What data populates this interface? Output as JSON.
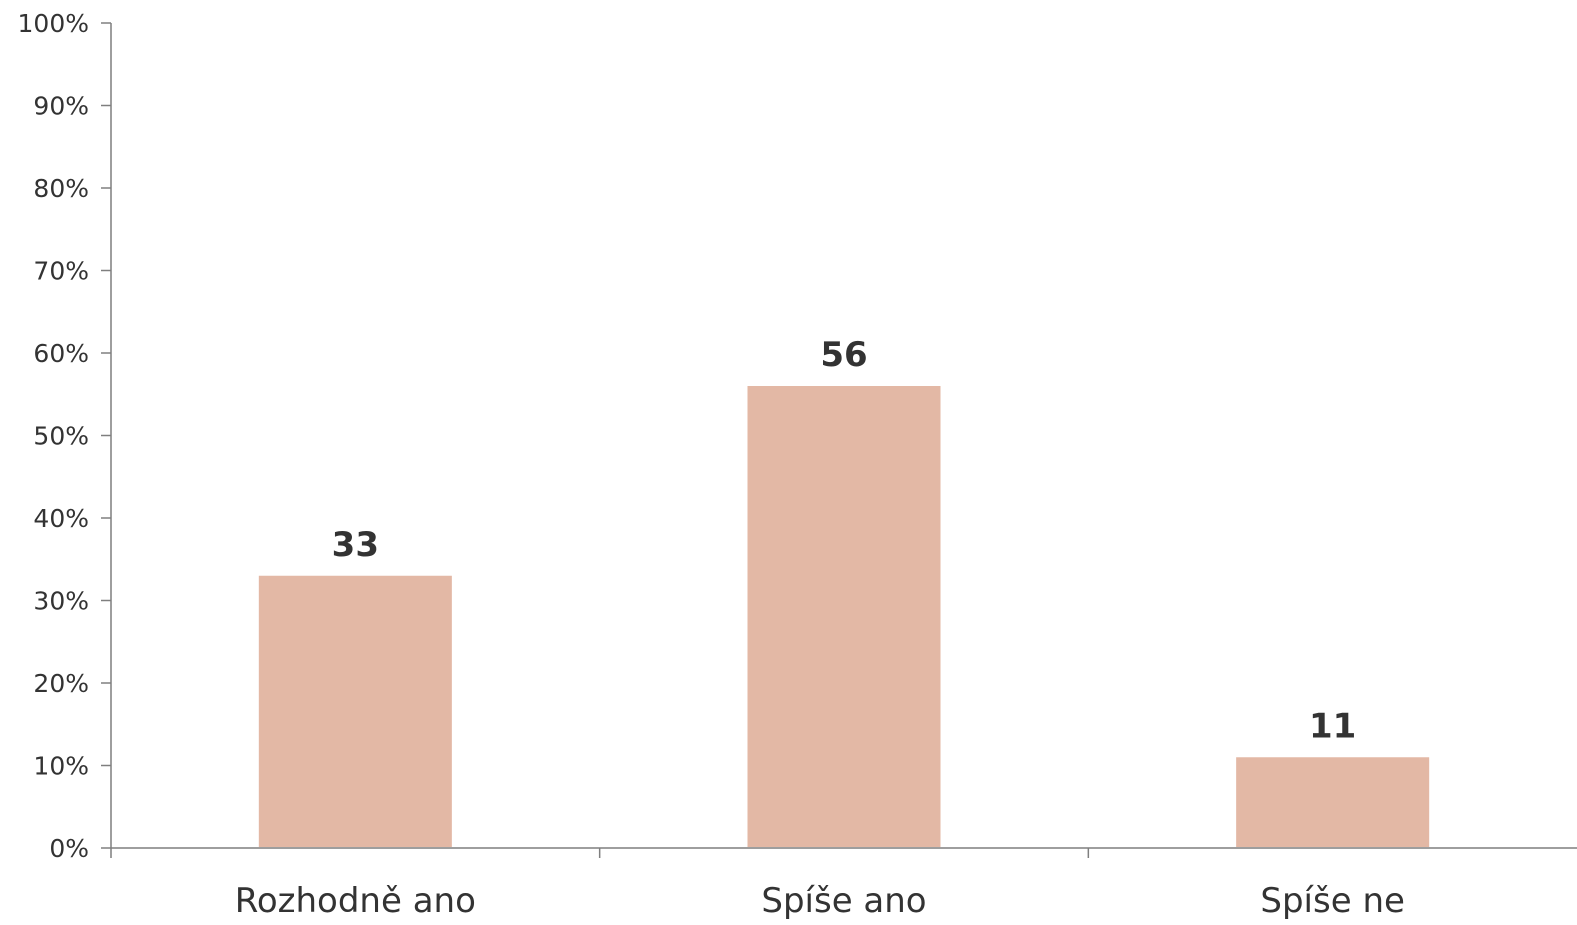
{
  "chart_data": {
    "type": "bar",
    "categories": [
      "Rozhodně ano",
      "Spíše ano",
      "Spíše ne"
    ],
    "values": [
      33,
      56,
      11
    ],
    "data_labels": [
      "33",
      "56",
      "11"
    ],
    "y_ticks": [
      "0%",
      "10%",
      "20%",
      "30%",
      "40%",
      "50%",
      "60%",
      "70%",
      "80%",
      "90%",
      "100%"
    ],
    "ylim": [
      0,
      100
    ],
    "grid": false,
    "legend": "none",
    "title": "",
    "xlabel": "",
    "ylabel": "",
    "colors": {
      "bar": "#e3b8a5",
      "axis": "#7f7f7f",
      "text": "#333333"
    }
  }
}
